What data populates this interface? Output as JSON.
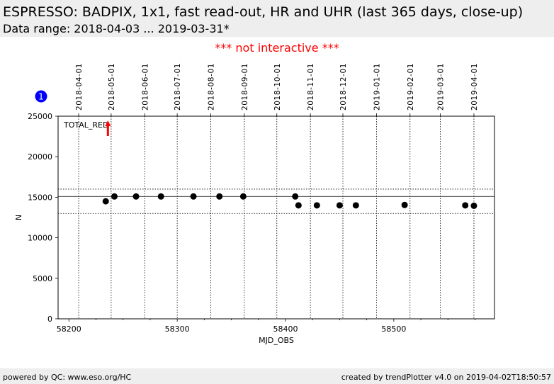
{
  "header": {
    "title": "ESPRESSO: BADPIX, 1x1, fast read-out, HR and UHR (last 365 days, close-up)",
    "subtitle": "Data range: 2018-04-03 ... 2019-03-31*",
    "notice": "*** not interactive ***"
  },
  "footer": {
    "left": "powered by QC: www.eso.org/HC",
    "right": "created by trendPlotter v4.0 on 2019-04-02T18:50:57"
  },
  "colors": {
    "notice": "#ff0000",
    "points": "#000000",
    "outlier_arrow": "#ff0000",
    "badge": "#0000ff",
    "band": "#eeeeee"
  },
  "chart_data": {
    "type": "scatter",
    "xlabel": "MJD_OBS",
    "ylabel": "N",
    "xlim": [
      58190,
      58593
    ],
    "ylim": [
      0,
      25000
    ],
    "xticks": [
      58200,
      58300,
      58400,
      58500
    ],
    "yticks": [
      0,
      5000,
      10000,
      15000,
      20000,
      25000
    ],
    "grid": "dotted vertical lines at month boundaries",
    "series_label": "TOTAL_RED",
    "badge": "1",
    "reference_line": 15100,
    "threshold_lines": [
      13000,
      16000
    ],
    "top_axis_dates": [
      {
        "label": "2018-04-01",
        "mjd": 58209
      },
      {
        "label": "2018-05-01",
        "mjd": 58239
      },
      {
        "label": "2018-06-01",
        "mjd": 58270
      },
      {
        "label": "2018-07-01",
        "mjd": 58300
      },
      {
        "label": "2018-08-01",
        "mjd": 58331
      },
      {
        "label": "2018-09-01",
        "mjd": 58362
      },
      {
        "label": "2018-10-01",
        "mjd": 58392
      },
      {
        "label": "2018-11-01",
        "mjd": 58423
      },
      {
        "label": "2018-12-01",
        "mjd": 58453
      },
      {
        "label": "2019-01-01",
        "mjd": 58484
      },
      {
        "label": "2019-02-01",
        "mjd": 58515
      },
      {
        "label": "2019-03-01",
        "mjd": 58543
      },
      {
        "label": "2019-04-01",
        "mjd": 58574
      }
    ],
    "points": [
      {
        "x": 58234,
        "y": 14500
      },
      {
        "x": 58242,
        "y": 15100
      },
      {
        "x": 58262,
        "y": 15100
      },
      {
        "x": 58285,
        "y": 15100
      },
      {
        "x": 58315,
        "y": 15100
      },
      {
        "x": 58339,
        "y": 15100
      },
      {
        "x": 58361,
        "y": 15100
      },
      {
        "x": 58409,
        "y": 15100
      },
      {
        "x": 58412,
        "y": 14000
      },
      {
        "x": 58429,
        "y": 14000
      },
      {
        "x": 58450,
        "y": 14000
      },
      {
        "x": 58465,
        "y": 14000
      },
      {
        "x": 58510,
        "y": 14050
      },
      {
        "x": 58566,
        "y": 14000
      },
      {
        "x": 58574,
        "y": 13950
      }
    ],
    "outliers": [
      {
        "x": 58236,
        "direction": "up"
      }
    ]
  }
}
